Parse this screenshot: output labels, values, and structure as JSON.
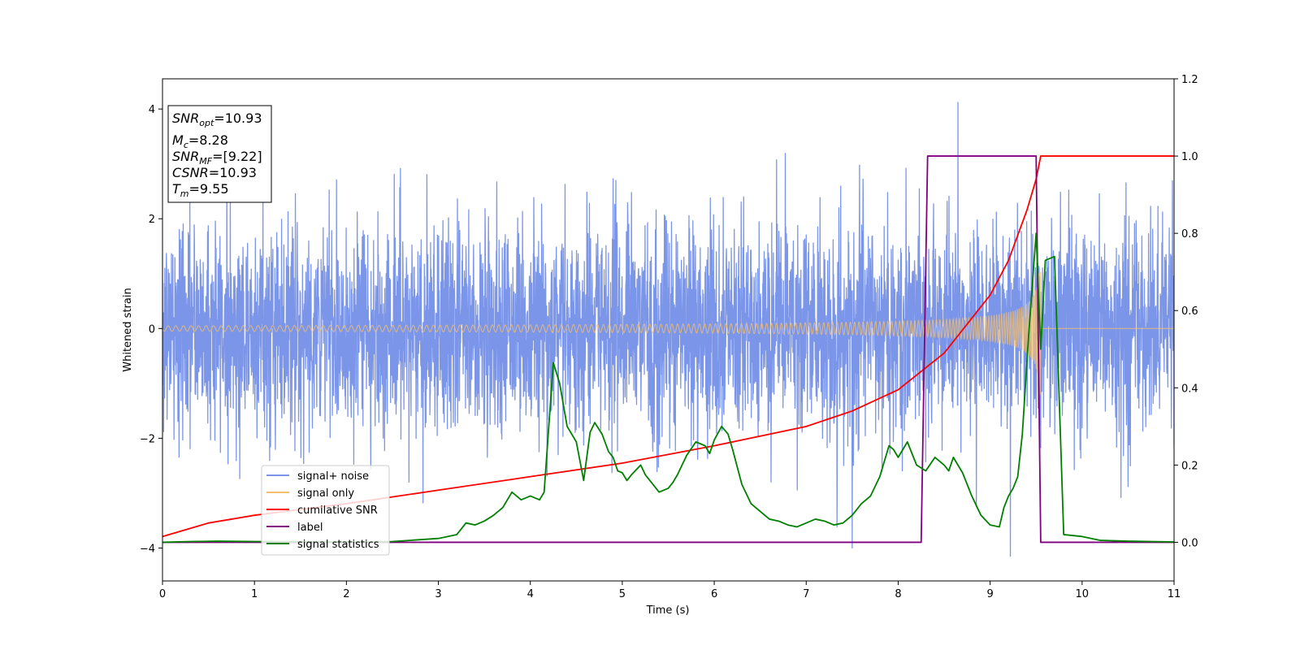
{
  "chart_data": {
    "type": "line",
    "xlabel": "Time (s)",
    "ylabel": "Whitened strain",
    "xlim": [
      0,
      11
    ],
    "ylim": [
      -4.6,
      4.55
    ],
    "y2lim": [
      -0.1,
      1.2
    ],
    "x_ticks": [
      0,
      1,
      2,
      3,
      4,
      5,
      6,
      7,
      8,
      9,
      10,
      11
    ],
    "y_ticks": [
      -4,
      -2,
      0,
      2,
      4
    ],
    "y2_ticks": [
      0.0,
      0.2,
      0.4,
      0.6,
      0.8,
      1.0,
      1.2
    ],
    "legend_position": "lower-left",
    "grid": false,
    "annotation": {
      "snr_opt": {
        "base": "SNR",
        "sub": "opt",
        "value": "=10.93"
      },
      "mc": {
        "base": "M",
        "sub": "c",
        "value": "=8.28"
      },
      "snr_mf": {
        "base": "SNR",
        "sub": "MF",
        "value": "=[9.22]"
      },
      "csnr": {
        "base": "CSNR",
        "value": "=10.93"
      },
      "tm": {
        "base": "T",
        "sub": "m",
        "value": "=9.55"
      }
    },
    "series": [
      {
        "name": "signal+ noise",
        "axis": "left",
        "color": "#7b95e8",
        "description": "noisy whitened strain, roughly N(0,1)",
        "envelope": {
          "typical_low": -2.0,
          "typical_high": 2.0,
          "max": 4.12,
          "max_at": 8.65,
          "min": -4.15,
          "min_at": 9.22
        }
      },
      {
        "name": "signal only",
        "axis": "left",
        "color": "#f5c06e",
        "description": "chirp waveform ending at merger",
        "t_merger": 9.55,
        "amplitude_start": 0.05,
        "amplitude_end": 1.25
      },
      {
        "name": "cumilative SNR",
        "axis": "right",
        "color": "#ff0000",
        "x": [
          0,
          0.5,
          1,
          2,
          3,
          4,
          5,
          6,
          7,
          7.5,
          8,
          8.5,
          9,
          9.2,
          9.4,
          9.5,
          9.55,
          9.6,
          10,
          11
        ],
        "y": [
          0.015,
          0.05,
          0.07,
          0.1,
          0.135,
          0.17,
          0.205,
          0.25,
          0.3,
          0.34,
          0.395,
          0.49,
          0.64,
          0.73,
          0.86,
          0.94,
          1.0,
          1.0,
          1.0,
          1.0
        ]
      },
      {
        "name": "label",
        "axis": "right",
        "color": "#800080",
        "x": [
          0,
          8.25,
          8.32,
          9.5,
          9.55,
          11
        ],
        "y": [
          0,
          0,
          1.0,
          1.0,
          0,
          0
        ]
      },
      {
        "name": "signal statistics",
        "axis": "right",
        "color": "#008000",
        "x": [
          0,
          0.3,
          0.6,
          1,
          2,
          2.5,
          3,
          3.2,
          3.3,
          3.4,
          3.5,
          3.6,
          3.7,
          3.8,
          3.9,
          4.0,
          4.1,
          4.15,
          4.25,
          4.32,
          4.4,
          4.5,
          4.58,
          4.65,
          4.7,
          4.78,
          4.85,
          4.9,
          4.95,
          5.0,
          5.05,
          5.1,
          5.2,
          5.25,
          5.3,
          5.4,
          5.5,
          5.55,
          5.6,
          5.65,
          5.7,
          5.8,
          5.9,
          5.95,
          6.0,
          6.08,
          6.15,
          6.2,
          6.3,
          6.4,
          6.45,
          6.5,
          6.6,
          6.7,
          6.8,
          6.9,
          7.0,
          7.1,
          7.2,
          7.3,
          7.4,
          7.5,
          7.6,
          7.7,
          7.75,
          7.8,
          7.85,
          7.9,
          7.95,
          8.0,
          8.1,
          8.2,
          8.3,
          8.4,
          8.5,
          8.55,
          8.6,
          8.7,
          8.8,
          8.9,
          9.0,
          9.1,
          9.15,
          9.2,
          9.25,
          9.3,
          9.35,
          9.42,
          9.5,
          9.55,
          9.6,
          9.7,
          9.8,
          10,
          10.2,
          10.5,
          11
        ],
        "y": [
          0,
          0.002,
          0.003,
          0.002,
          0.001,
          0.002,
          0.01,
          0.02,
          0.05,
          0.045,
          0.055,
          0.07,
          0.09,
          0.13,
          0.11,
          0.12,
          0.11,
          0.13,
          0.465,
          0.41,
          0.3,
          0.26,
          0.16,
          0.285,
          0.31,
          0.28,
          0.235,
          0.22,
          0.185,
          0.18,
          0.16,
          0.175,
          0.2,
          0.175,
          0.16,
          0.13,
          0.14,
          0.155,
          0.175,
          0.2,
          0.225,
          0.26,
          0.25,
          0.23,
          0.265,
          0.3,
          0.28,
          0.24,
          0.15,
          0.1,
          0.09,
          0.08,
          0.06,
          0.055,
          0.045,
          0.04,
          0.05,
          0.06,
          0.055,
          0.045,
          0.05,
          0.07,
          0.1,
          0.12,
          0.145,
          0.17,
          0.21,
          0.25,
          0.24,
          0.22,
          0.26,
          0.2,
          0.185,
          0.22,
          0.2,
          0.185,
          0.22,
          0.18,
          0.12,
          0.07,
          0.045,
          0.04,
          0.09,
          0.12,
          0.14,
          0.17,
          0.28,
          0.54,
          0.8,
          0.5,
          0.73,
          0.74,
          0.02,
          0.015,
          0.005,
          0.003,
          0.001
        ]
      }
    ]
  }
}
